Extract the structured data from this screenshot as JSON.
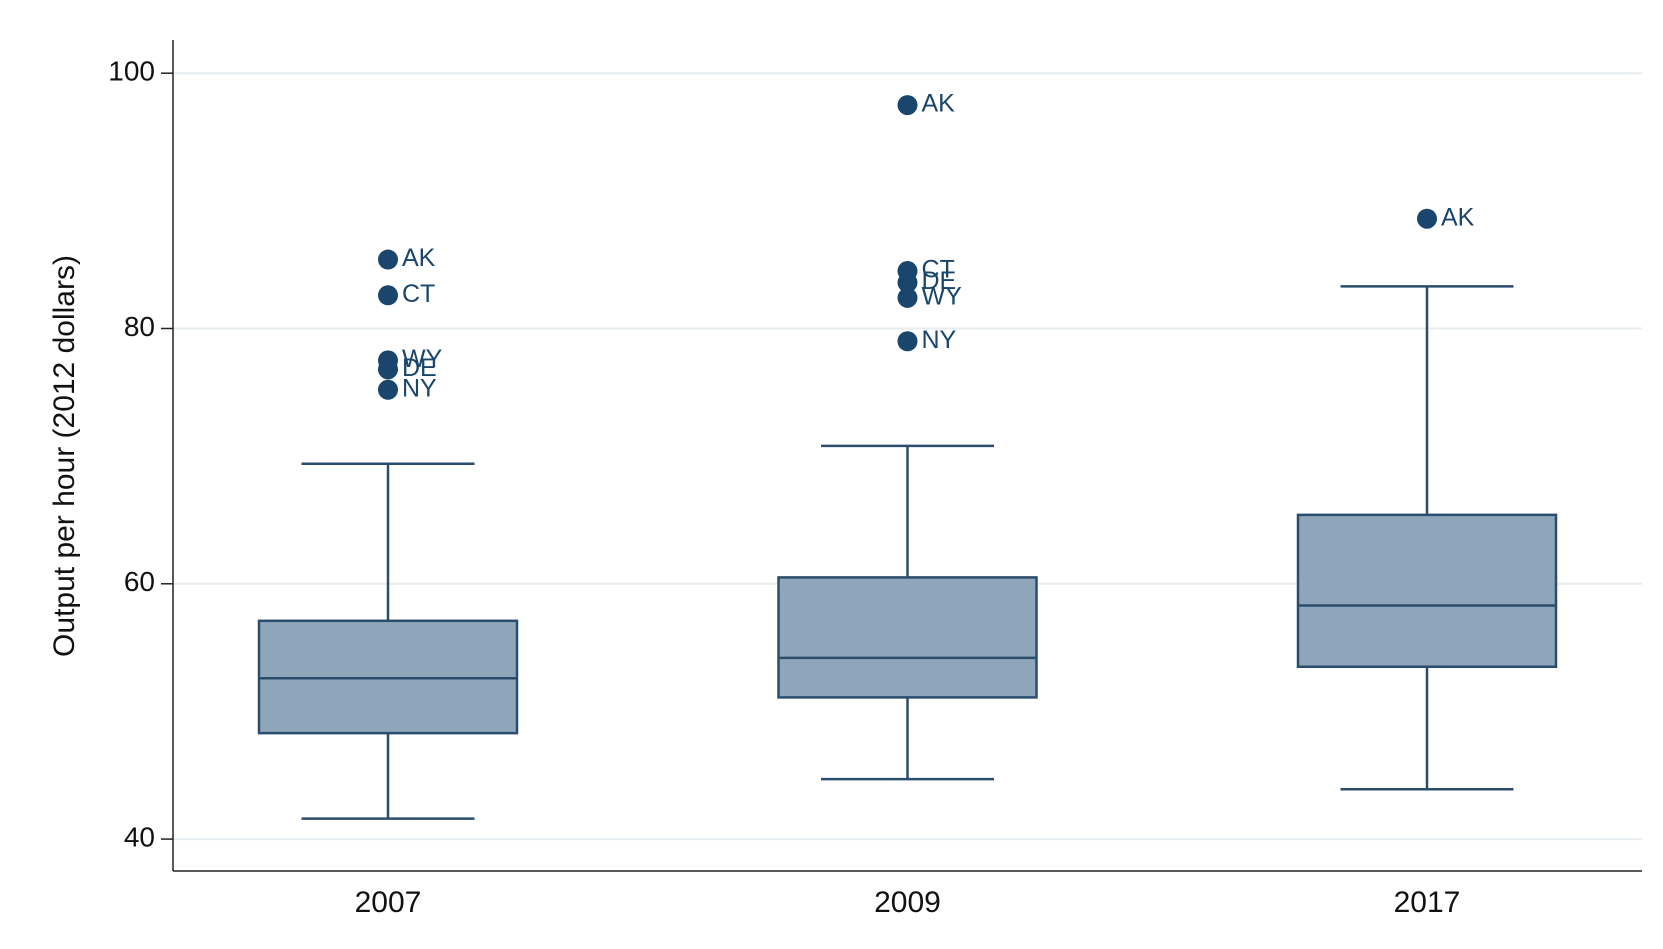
{
  "chart_data": {
    "type": "box",
    "y_label": "Output per hour (2012 dollars)",
    "categories": [
      "2007",
      "2009",
      "2017"
    ],
    "box_color": "#8fa5ba",
    "line_color": "#2b4d6d",
    "outlier_color": "#1a456c",
    "boxes": [
      {
        "whisker_low": 41.6,
        "q1": 48.3,
        "median": 52.6,
        "q3": 57.1,
        "whisker_high": 69.4,
        "outliers": [
          {
            "label": "AK",
            "value": 85.4
          },
          {
            "label": "CT",
            "value": 82.6
          },
          {
            "label": "WY",
            "value": 77.5
          },
          {
            "label": "DE",
            "value": 76.8
          },
          {
            "label": "NY",
            "value": 75.2
          }
        ]
      },
      {
        "whisker_low": 44.7,
        "q1": 51.1,
        "median": 54.2,
        "q3": 60.5,
        "whisker_high": 70.8,
        "outliers": [
          {
            "label": "AK",
            "value": 97.5
          },
          {
            "label": "CT",
            "value": 84.5
          },
          {
            "label": "DE",
            "value": 83.6
          },
          {
            "label": "WY",
            "value": 82.4
          },
          {
            "label": "NY",
            "value": 79.0
          }
        ]
      },
      {
        "whisker_low": 43.9,
        "q1": 53.5,
        "median": 58.3,
        "q3": 65.4,
        "whisker_high": 83.3,
        "outliers": [
          {
            "label": "AK",
            "value": 88.6
          }
        ]
      }
    ],
    "ylim": [
      37.5,
      102.6
    ],
    "yticks": [
      40,
      60,
      80,
      100
    ],
    "grid": true
  }
}
